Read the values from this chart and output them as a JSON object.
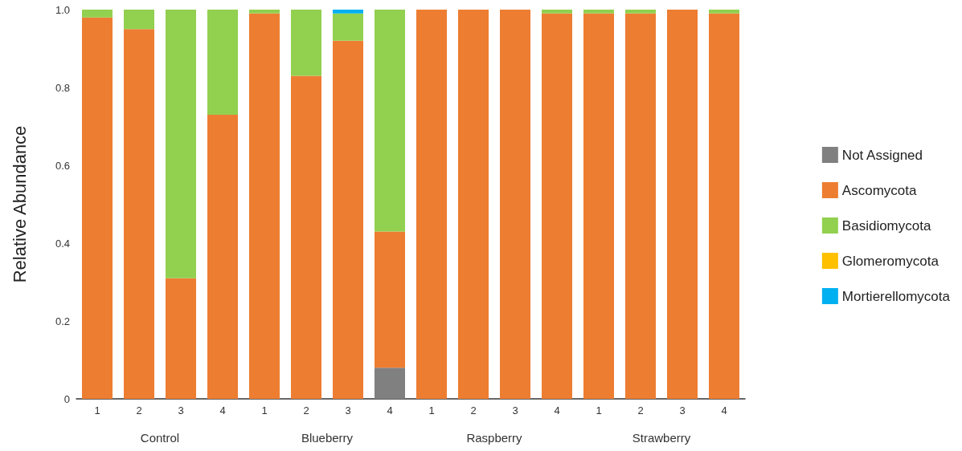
{
  "chart_data": {
    "type": "bar",
    "stacked": true,
    "ylabel": "Relative Abundance",
    "categories": [
      "1",
      "2",
      "3",
      "4",
      "1",
      "2",
      "3",
      "4",
      "1",
      "2",
      "3",
      "4",
      "1",
      "2",
      "3",
      "4"
    ],
    "annotations": [
      "Control",
      "Blueberry",
      "Raspberry",
      "Strawberry"
    ],
    "ylim": [
      0,
      1
    ],
    "yticks": [
      0,
      0.2,
      0.4,
      0.6,
      0.8,
      {
        "value": 1,
        "label": "1.0"
      }
    ],
    "grid": false,
    "legend": "right",
    "series": [
      {
        "name": "Not Assigned",
        "color": "#808080",
        "values": [
          0,
          0,
          0,
          0,
          0,
          0,
          0,
          0.08,
          0,
          0,
          0,
          0,
          0,
          0,
          0,
          0
        ]
      },
      {
        "name": "Ascomycota",
        "color": "#ed7d31",
        "values": [
          0.98,
          0.95,
          0.31,
          0.73,
          0.99,
          0.83,
          0.92,
          0.35,
          1,
          1,
          1,
          0.99,
          0.99,
          0.99,
          1,
          0.99
        ]
      },
      {
        "name": "Basidiomycota",
        "color": "#92d050",
        "values": [
          0.02,
          0.05,
          0.69,
          0.27,
          0.01,
          0.17,
          0.07,
          0.57,
          0,
          0,
          0,
          0.01,
          0.01,
          0.01,
          0,
          0.01
        ]
      },
      {
        "name": "Glomeromycota",
        "color": "#ffc000",
        "values": [
          0,
          0,
          0,
          0,
          0,
          0,
          0,
          0,
          0,
          0,
          0,
          0,
          0,
          0,
          0,
          0
        ]
      },
      {
        "name": "Mortierellomycota",
        "color": "#00b0f0",
        "values": [
          0,
          0,
          0,
          0,
          0,
          0,
          0.01,
          0,
          0,
          0,
          0,
          0,
          0,
          0,
          0,
          0
        ]
      }
    ]
  }
}
